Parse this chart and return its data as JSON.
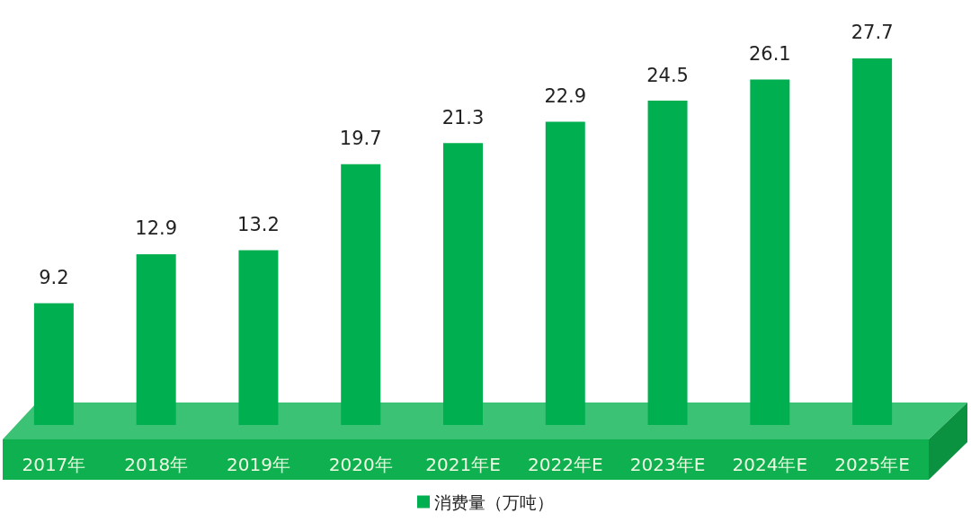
{
  "chart_data": {
    "type": "bar",
    "categories": [
      "2017年",
      "2018年",
      "2019年",
      "2020年",
      "2021年E",
      "2022年E",
      "2023年E",
      "2024年E",
      "2025年E"
    ],
    "series": [
      {
        "name": "消费量（万吨）",
        "color": "#00b050",
        "values": [
          9.2,
          12.9,
          13.2,
          19.7,
          21.3,
          22.9,
          24.5,
          26.1,
          27.7
        ]
      }
    ],
    "data_labels": true,
    "legend": "bottom",
    "grid": false
  }
}
